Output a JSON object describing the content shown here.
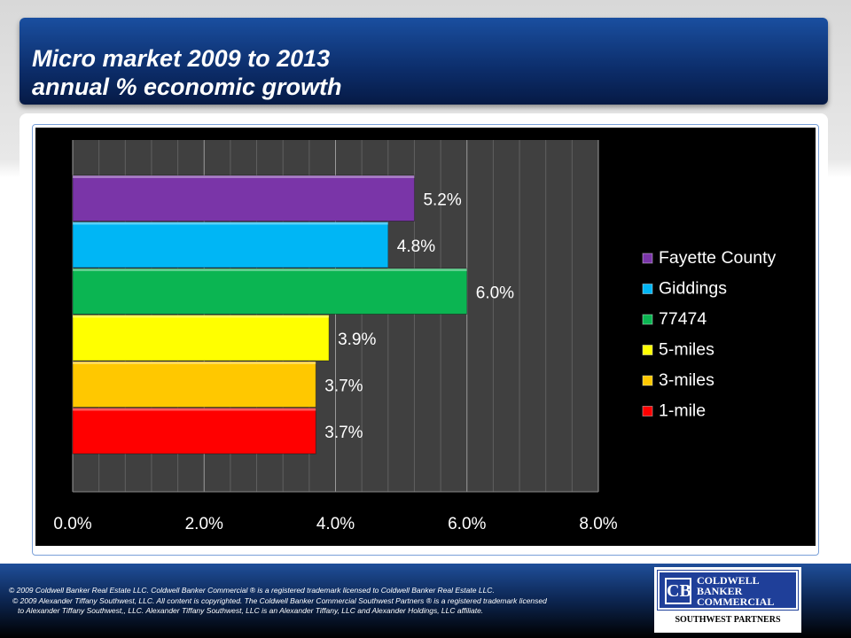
{
  "title": {
    "line1": "Micro market 2009 to 2013",
    "line2": "annual % economic growth"
  },
  "chart_data": {
    "type": "bar",
    "orientation": "horizontal",
    "categories": [
      "Fayette County",
      "Giddings",
      "77474",
      "5-miles",
      "3-miles",
      "1-mile"
    ],
    "values": [
      5.2,
      4.8,
      6.0,
      3.9,
      3.7,
      3.7
    ],
    "labels": [
      "5.2%",
      "4.8%",
      "6.0%",
      "3.9%",
      "3.7%",
      "3.7%"
    ],
    "colors": [
      "#7a35a8",
      "#00b6f5",
      "#0bb552",
      "#ffff00",
      "#ffc800",
      "#ff0000"
    ],
    "xlim": [
      0,
      8
    ],
    "xticks": [
      "0.0%",
      "2.0%",
      "4.0%",
      "6.0%",
      "8.0%"
    ],
    "xtick_values": [
      0,
      2,
      4,
      6,
      8
    ],
    "minor_grid_step": 0.4,
    "legend_position": "right",
    "title": "",
    "xlabel": "",
    "ylabel": ""
  },
  "footer": {
    "line1": "©  2009 Coldwell Banker Real Estate  LLC. Coldwell Banker Commercial ® is a registered trademark licensed to Coldwell Banker Real Estate LLC.",
    "line2": "© 2009  Alexander Tiffany Southwest,  LLC. All content is copyrighted. The Coldwell Banker Commercial Southwest Partners ® is a registered trademark licensed",
    "line3": "to Alexander Tiffany Southwest,, LLC.  Alexander Tiffany Southwest, LLC is an Alexander Tiffany, LLC and Alexander Holdings, LLC affiliate."
  },
  "logo": {
    "line1": "COLDWELL",
    "line2": "BANKER",
    "line3": "COMMERCIAL",
    "sub": "SOUTHWEST PARTNERS"
  }
}
